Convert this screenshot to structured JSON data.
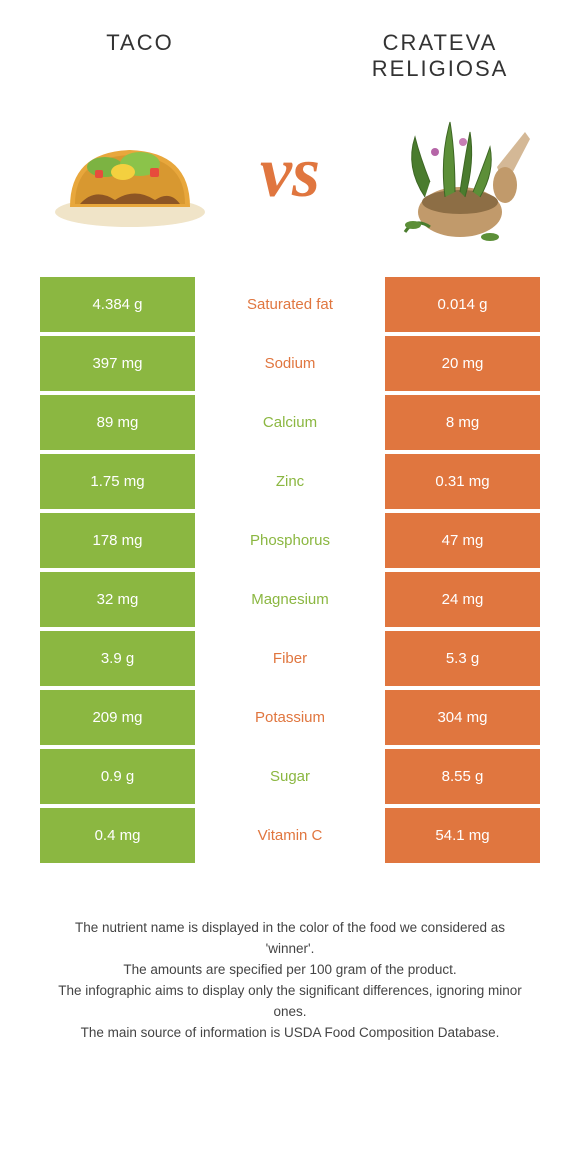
{
  "foods": {
    "left": "TACO",
    "right": "CRATEVA RELIGIOSA"
  },
  "vs": "vs",
  "colors": {
    "leftBg": "#8BB741",
    "rightBg": "#E0763F",
    "leftText": "#8BB741",
    "rightText": "#E0763F",
    "bodyText": "#444444"
  },
  "rows": [
    {
      "label": "Saturated fat",
      "left": "4.384 g",
      "right": "0.014 g",
      "winner": "right"
    },
    {
      "label": "Sodium",
      "left": "397 mg",
      "right": "20 mg",
      "winner": "right"
    },
    {
      "label": "Calcium",
      "left": "89 mg",
      "right": "8 mg",
      "winner": "left"
    },
    {
      "label": "Zinc",
      "left": "1.75 mg",
      "right": "0.31 mg",
      "winner": "left"
    },
    {
      "label": "Phosphorus",
      "left": "178 mg",
      "right": "47 mg",
      "winner": "left"
    },
    {
      "label": "Magnesium",
      "left": "32 mg",
      "right": "24 mg",
      "winner": "left"
    },
    {
      "label": "Fiber",
      "left": "3.9 g",
      "right": "5.3 g",
      "winner": "right"
    },
    {
      "label": "Potassium",
      "left": "209 mg",
      "right": "304 mg",
      "winner": "right"
    },
    {
      "label": "Sugar",
      "left": "0.9 g",
      "right": "8.55 g",
      "winner": "left"
    },
    {
      "label": "Vitamin C",
      "left": "0.4 mg",
      "right": "54.1 mg",
      "winner": "right"
    }
  ],
  "footer": {
    "line1": "The nutrient name is displayed in the color of the food we considered as 'winner'.",
    "line2": "The amounts are specified per 100 gram of the product.",
    "line3": "The infographic aims to display only the significant differences, ignoring minor ones.",
    "line4": "The main source of information is USDA Food Composition Database."
  }
}
